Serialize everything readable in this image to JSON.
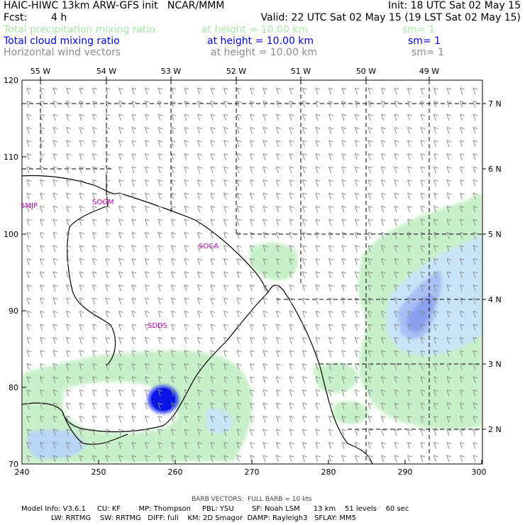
{
  "header": {
    "line1_left": "HAIC-HIWC 13km ARW-GFS init   NCAR/MMM",
    "line1_right": "Init: 18 UTC Sat 02 May 15",
    "line2_fcst_label": "Fcst:",
    "line2_fcst_value": "4 h",
    "line2_valid": "Valid: 22 UTC Sat 02 May 15 (19 LST Sat 02 May 15)",
    "fields": [
      {
        "name": "Total precipitation mixing ratio",
        "level": "at height = 10.00 km",
        "sm": "sm= 1",
        "color": "#a8e8a8"
      },
      {
        "name": "Total cloud mixing ratio",
        "level": "at height = 10.00 km",
        "sm": "sm= 1",
        "color": "#0000ff"
      },
      {
        "name": "Horizontal wind vectors",
        "level": "at height = 10.00 km",
        "sm": "sm= 1",
        "color": "#8c8c8c"
      }
    ]
  },
  "axes": {
    "x_ticks": [
      "240",
      "250",
      "260",
      "270",
      "280",
      "290",
      "300"
    ],
    "y_ticks": [
      "70",
      "80",
      "90",
      "100",
      "110",
      "120"
    ],
    "lon_labels": [
      "55 W",
      "54 W",
      "53 W",
      "52 W",
      "51 W",
      "50 W",
      "49 W"
    ],
    "lat_labels": [
      "2 N",
      "3 N",
      "4 N",
      "5 N",
      "6 N",
      "7 N"
    ]
  },
  "stations": [
    "SMJP",
    "SOGM",
    "SOCA",
    "SDDS"
  ],
  "footer": {
    "barb_note": "BARB VECTORS:  FULL BARB = 10 kts",
    "model_line1": "Model Info: V3.6.1     CU: KF        MP: Thompson     PBL: YSU        SF: Noah LSM      13 km    51 levels    60 sec",
    "model_line2": "LW: RRTMG    SW: RRTMG   DIFF: full    KM: 2D Smagor  DAMP: Rayleigh3   SFLAY: MM5"
  },
  "colors": {
    "precip": "#c8f0c8",
    "cloud_light": "#c8e4f8",
    "cloud_mid": "#8aa8f0",
    "cloud_core": "#0a14e6",
    "station": "#c000c0",
    "barb": "#8c8c8c"
  }
}
